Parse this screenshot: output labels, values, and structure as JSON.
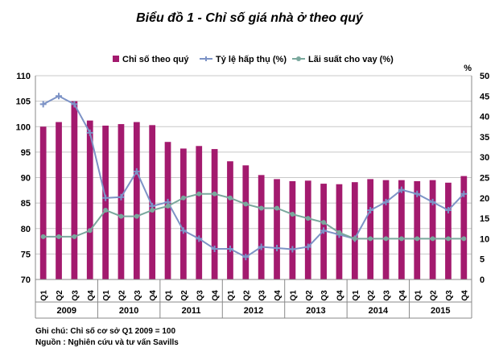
{
  "chart_data": {
    "type": "bar",
    "title": "Biểu đồ 1 - Chỉ số giá nhà ở theo quý",
    "right_axis_unit": "%",
    "categories": [
      "Q1",
      "Q2",
      "Q3",
      "Q4",
      "Q1",
      "Q2",
      "Q3",
      "Q4",
      "Q1",
      "Q2",
      "Q3",
      "Q4",
      "Q1",
      "Q2",
      "Q3",
      "Q4",
      "Q1",
      "Q2",
      "Q3",
      "Q4",
      "Q1",
      "Q2",
      "Q3",
      "Q4",
      "Q1",
      "Q2",
      "Q3",
      "Q4"
    ],
    "years": [
      "2009",
      "2010",
      "2011",
      "2012",
      "2013",
      "2014",
      "2015"
    ],
    "ylim_left": [
      70,
      110
    ],
    "yticks_left": [
      70,
      75,
      80,
      85,
      90,
      95,
      100,
      105,
      110
    ],
    "ylim_right": [
      0,
      50
    ],
    "yticks_right": [
      0,
      5,
      10,
      15,
      20,
      25,
      30,
      35,
      40,
      45,
      50
    ],
    "series": [
      {
        "name": "Chỉ số theo quý",
        "kind": "bar",
        "axis": "left",
        "color": "#a31a6e",
        "values": [
          100,
          100.9,
          105,
          101.2,
          100.2,
          100.5,
          100.9,
          100.3,
          97,
          95.7,
          96.2,
          95.6,
          93.2,
          92.4,
          90.5,
          89.7,
          89.3,
          89.4,
          88.8,
          88.7,
          89.1,
          89.7,
          89.5,
          89.5,
          89.3,
          89.5,
          89,
          90.3
        ]
      },
      {
        "name": "Tỷ lệ hấp thụ (%)",
        "kind": "line",
        "axis": "right",
        "color": "#7d93c6",
        "values": [
          43,
          45,
          43,
          36,
          20,
          20.2,
          26.5,
          18,
          19,
          12,
          10,
          7.5,
          7.5,
          5.5,
          8,
          7.7,
          7.4,
          8,
          12,
          11,
          10,
          17,
          19,
          22,
          21,
          19,
          17,
          21
        ]
      },
      {
        "name": "Lãi suất cho vay (%)",
        "kind": "line",
        "axis": "right",
        "color": "#7aa89d",
        "values": [
          10.5,
          10.5,
          10.5,
          12,
          17,
          15.5,
          15.5,
          17,
          18,
          20,
          21,
          21,
          20,
          18.5,
          17.5,
          17.5,
          16,
          15,
          14,
          11.5,
          10,
          10,
          10,
          10,
          10,
          10,
          10,
          10
        ]
      }
    ]
  },
  "notes": {
    "line1": "Ghi chú: Chỉ số cơ sở Q1 2009 = 100",
    "line2": "Nguồn : Nghiên cứu và tư vấn Savills"
  }
}
